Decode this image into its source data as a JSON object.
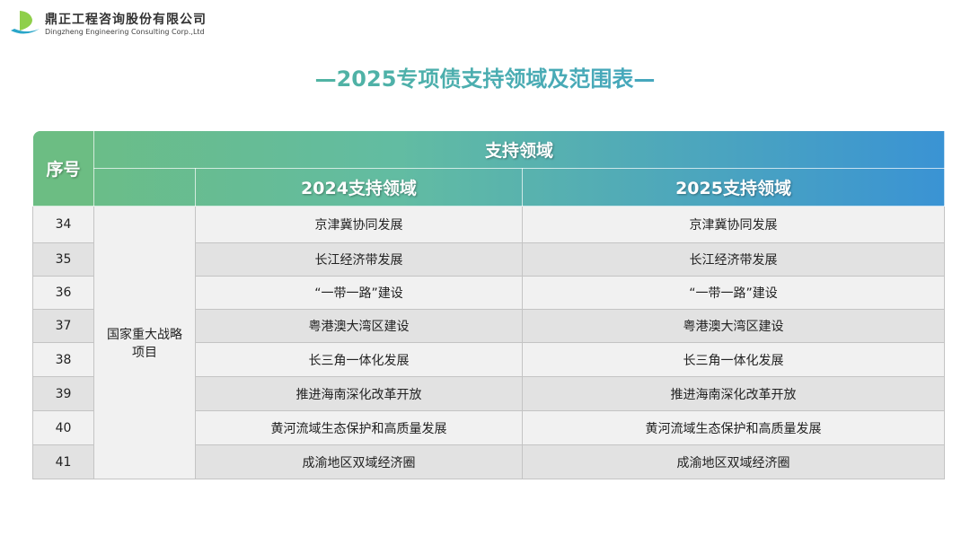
{
  "company": {
    "name_cn": "鼎正工程咨询股份有限公司",
    "name_en": "Dingzheng Engineering Consulting Corp.,Ltd"
  },
  "title": "—2025专项债支持领域及范围表—",
  "table": {
    "headers": {
      "index": "序号",
      "group": "支持领域",
      "col2024": "2024支持领域",
      "col2025": "2025支持领域"
    },
    "category": "国家重大战略项目",
    "rows": [
      {
        "no": "34",
        "y2024": "京津冀协同发展",
        "y2025": "京津冀协同发展"
      },
      {
        "no": "35",
        "y2024": "长江经济带发展",
        "y2025": "长江经济带发展"
      },
      {
        "no": "36",
        "y2024": "“一带一路”建设",
        "y2025": "“一带一路”建设"
      },
      {
        "no": "37",
        "y2024": "粤港澳大湾区建设",
        "y2025": "粤港澳大湾区建设"
      },
      {
        "no": "38",
        "y2024": "长三角一体化发展",
        "y2025": "长三角一体化发展"
      },
      {
        "no": "39",
        "y2024": "推进海南深化改革开放",
        "y2025": "推进海南深化改革开放"
      },
      {
        "no": "40",
        "y2024": "黄河流域生态保护和高质量发展",
        "y2025": "黄河流域生态保护和高质量发展"
      },
      {
        "no": "41",
        "y2024": "成渝地区双域经济圈",
        "y2025": "成渝地区双域经济圈"
      }
    ]
  }
}
